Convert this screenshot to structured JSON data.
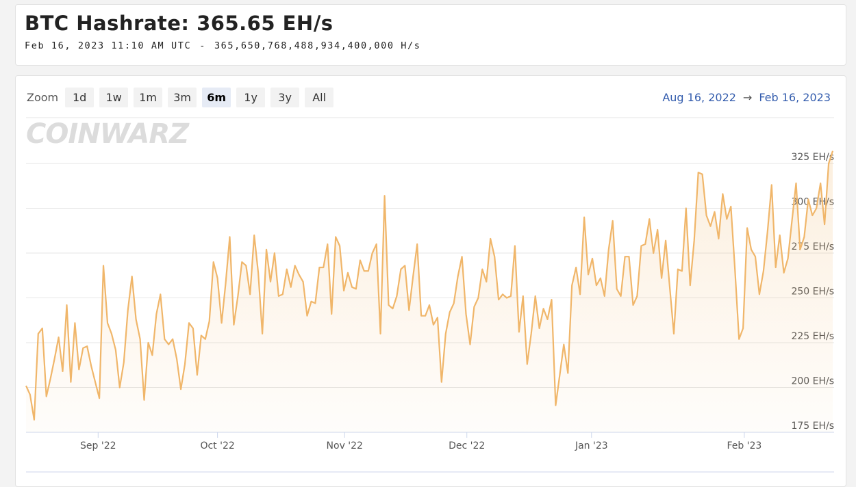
{
  "header": {
    "title": "BTC Hashrate: 365.65 EH/s",
    "timestamp": "Feb 16, 2023 11:10 AM UTC",
    "separator": "-",
    "exact": "365,650,768,488,934,400,000 H/s"
  },
  "zoom": {
    "label": "Zoom",
    "buttons": [
      "1d",
      "1w",
      "1m",
      "3m",
      "6m",
      "1y",
      "3y",
      "All"
    ],
    "selected": 4
  },
  "range": {
    "from": "Aug 16, 2022",
    "arrow": "→",
    "to": "Feb 16, 2023"
  },
  "watermark": "COINWARZ",
  "chart_data": {
    "type": "area",
    "series": [
      {
        "color": "#f0b66a",
        "values": [
          201,
          196,
          182,
          230,
          233,
          195,
          205,
          216,
          228,
          209,
          246,
          203,
          236,
          210,
          222,
          223,
          212,
          203,
          194,
          268,
          236,
          230,
          221,
          200,
          214,
          243,
          262,
          238,
          227,
          193,
          225,
          218,
          241,
          252,
          227,
          224,
          227,
          216,
          199,
          213,
          236,
          233,
          207,
          229,
          227,
          237,
          270,
          261,
          236,
          258,
          284,
          235,
          251,
          270,
          268,
          252,
          285,
          264,
          230,
          277,
          259,
          275,
          251,
          252,
          266,
          256,
          268,
          263,
          259,
          240,
          248,
          247,
          267,
          267,
          280,
          241,
          284,
          279,
          254,
          264,
          256,
          255,
          271,
          265,
          265,
          275,
          280,
          230,
          307,
          246,
          244,
          251,
          266,
          268,
          243,
          262,
          280,
          240,
          240,
          246,
          235,
          239,
          203,
          230,
          242,
          247,
          262,
          273,
          241,
          224,
          245,
          250,
          266,
          259,
          283,
          273,
          249,
          252,
          250,
          251,
          279,
          231,
          251,
          213,
          230,
          251,
          233,
          244,
          238,
          249,
          190,
          207,
          224,
          208,
          257,
          267,
          252,
          295,
          263,
          272,
          257,
          261,
          251,
          277,
          293,
          255,
          251,
          273,
          273,
          246,
          251,
          279,
          280,
          294,
          275,
          288,
          261,
          282,
          256,
          230,
          266,
          265,
          300,
          257,
          282,
          320,
          319,
          296,
          290,
          298,
          283,
          308,
          294,
          301,
          266,
          227,
          233,
          289,
          277,
          273,
          252,
          265,
          287,
          313,
          267,
          285,
          264,
          272,
          293,
          314,
          277,
          284,
          305,
          296,
          300,
          314,
          291,
          325,
          332
        ]
      }
    ],
    "xlim": [
      0,
      198
    ],
    "xticks": [
      {
        "value": 17.7,
        "label": "Sep '22"
      },
      {
        "value": 47,
        "label": "Oct '22"
      },
      {
        "value": 78.2,
        "label": "Nov '22"
      },
      {
        "value": 108.2,
        "label": "Dec '22"
      },
      {
        "value": 138.8,
        "label": "Jan '23"
      },
      {
        "value": 176.3,
        "label": "Feb '23"
      }
    ],
    "ylim": [
      175,
      350
    ],
    "yticks": [
      {
        "value": 175,
        "label": "175 EH/s"
      },
      {
        "value": 200,
        "label": "200 EH/s"
      },
      {
        "value": 225,
        "label": "225 EH/s"
      },
      {
        "value": 250,
        "label": "250 EH/s"
      },
      {
        "value": 275,
        "label": "275 EH/s"
      },
      {
        "value": 300,
        "label": "300 EH/s"
      },
      {
        "value": 325,
        "label": "325 EH/s"
      }
    ],
    "grid": true
  }
}
